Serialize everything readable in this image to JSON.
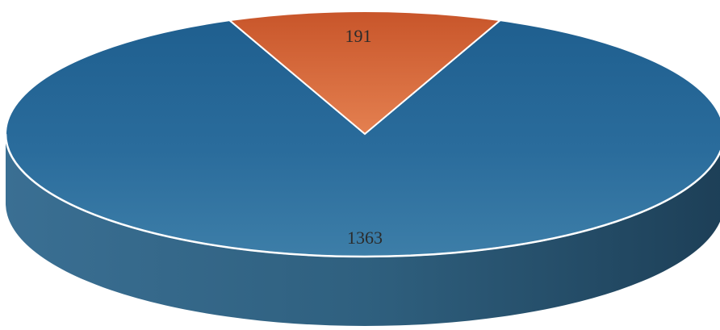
{
  "chart_data": {
    "type": "pie",
    "style": "3d",
    "categories": [
      "",
      ""
    ],
    "values": [
      1363,
      191
    ],
    "data_labels": [
      "1363",
      "191"
    ],
    "colors": [
      "#2f6f9e",
      "#d8673a"
    ],
    "title": "",
    "legend": "none"
  }
}
